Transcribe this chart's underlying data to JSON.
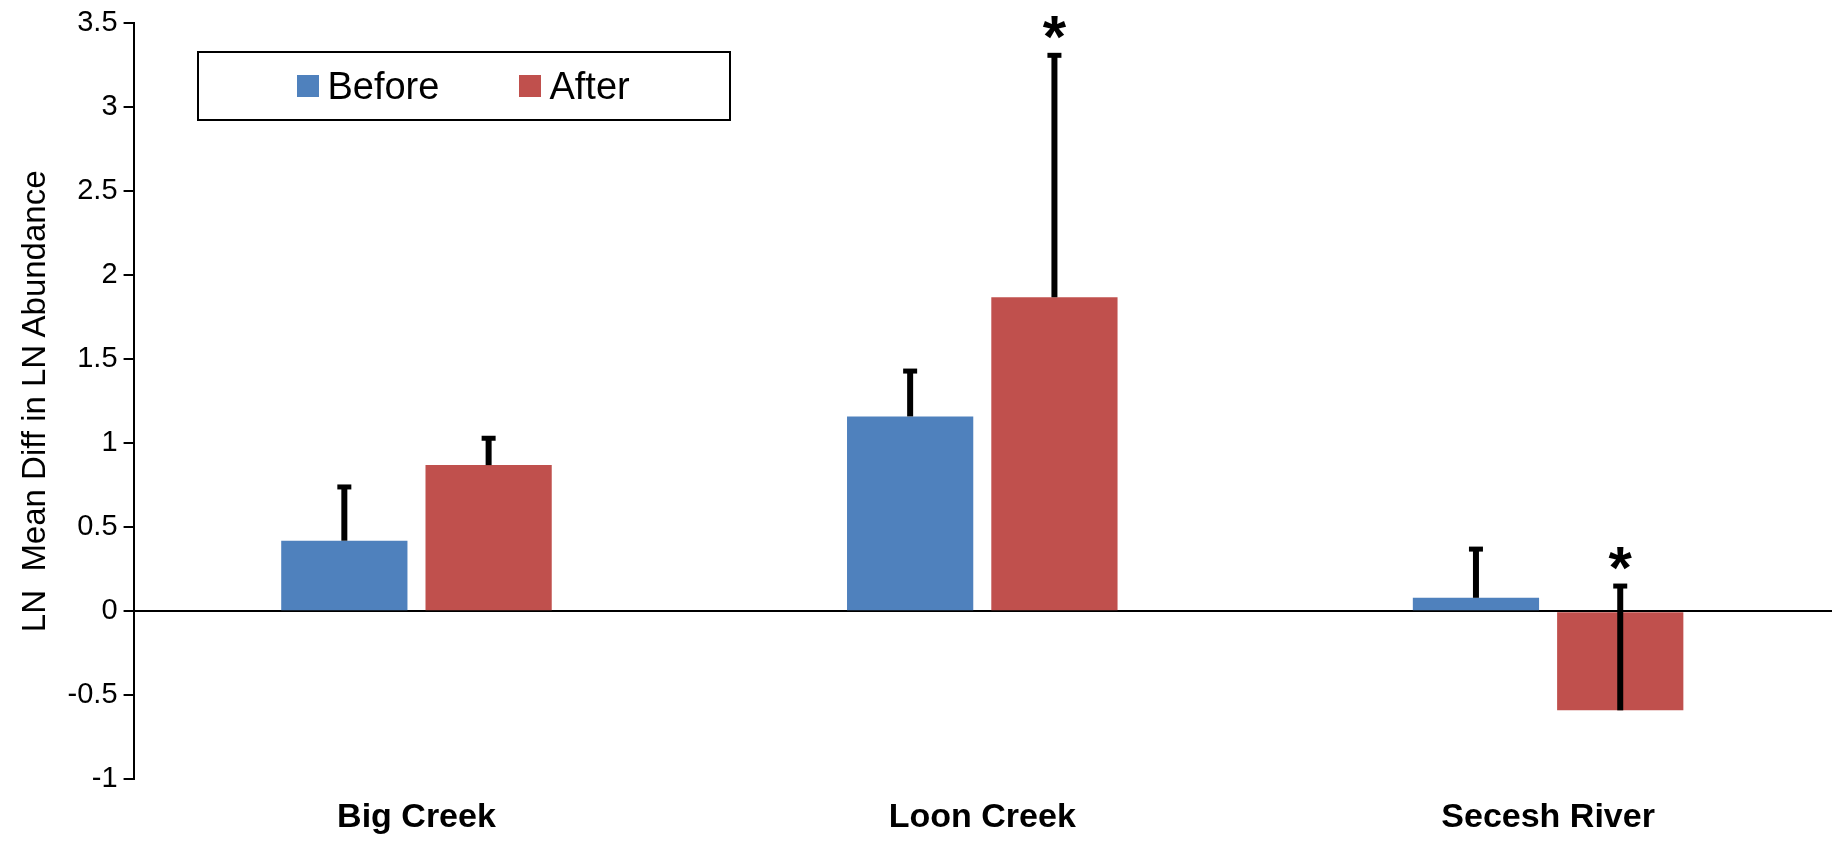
{
  "chart_data": {
    "type": "bar",
    "ylabel": "LN  Mean Diff in LN Abundance",
    "categories": [
      "Big Creek",
      "Loon Creek",
      "Secesh River"
    ],
    "series": [
      {
        "name": "Before",
        "color": "#4f81bd",
        "values": [
          0.42,
          1.16,
          0.08
        ],
        "errors": [
          [
            0.42,
            0.74
          ],
          [
            1.16,
            1.43
          ],
          [
            0.08,
            0.37
          ]
        ]
      },
      {
        "name": "After",
        "color": "#c0504d",
        "values": [
          0.87,
          1.87,
          -0.59
        ],
        "errors": [
          [
            0.87,
            1.03
          ],
          [
            1.87,
            3.31
          ],
          [
            -0.59,
            0.15
          ]
        ]
      }
    ],
    "ylim": [
      -1,
      3.5
    ],
    "yticks": [
      -1,
      -0.5,
      0,
      0.5,
      1,
      1.5,
      2,
      2.5,
      3,
      3.5
    ],
    "annotations": [
      "*",
      "*"
    ],
    "legend": "top left"
  }
}
